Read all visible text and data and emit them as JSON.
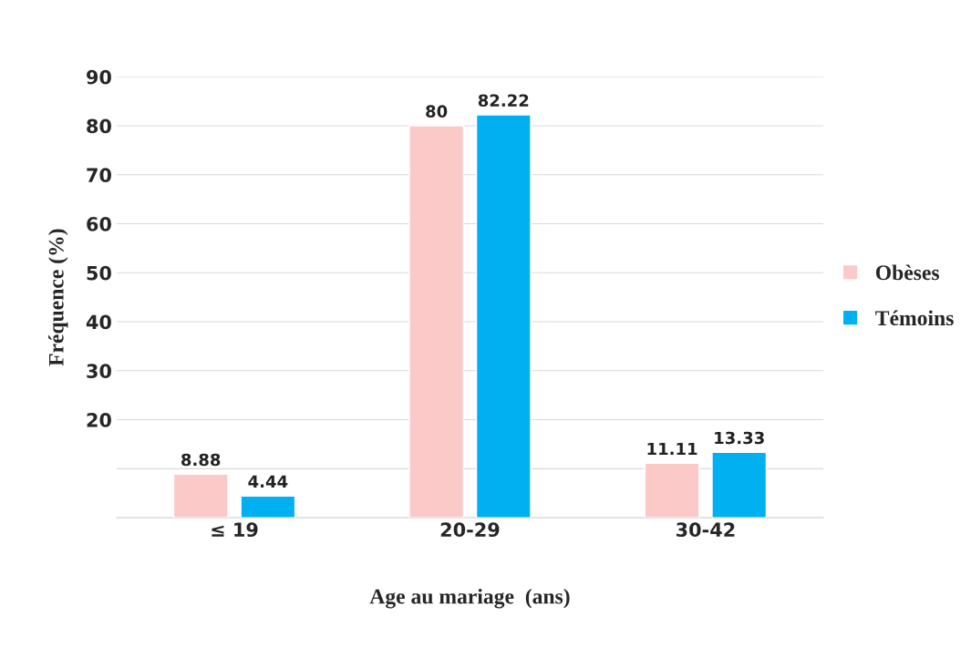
{
  "chart_data": {
    "type": "bar",
    "xlabel": "Age au mariage  (ans)",
    "ylabel": "Fréquence (%)",
    "categories": [
      "≤ 19",
      "20-29",
      "30-42"
    ],
    "series": [
      {
        "name": "Obèses",
        "color": "#fbc9c8",
        "values": [
          8.88,
          80,
          11.11
        ]
      },
      {
        "name": "Témoins",
        "color": "#00b0f0",
        "values": [
          4.44,
          82.22,
          13.33
        ]
      }
    ],
    "ylim": [
      0,
      90
    ],
    "yticks": [
      {
        "value": 0,
        "label": null
      },
      {
        "value": 10,
        "label": null
      },
      20,
      30,
      40,
      50,
      60,
      70,
      80,
      90
    ],
    "grid": "y",
    "legend": "right",
    "data_labels": true
  }
}
